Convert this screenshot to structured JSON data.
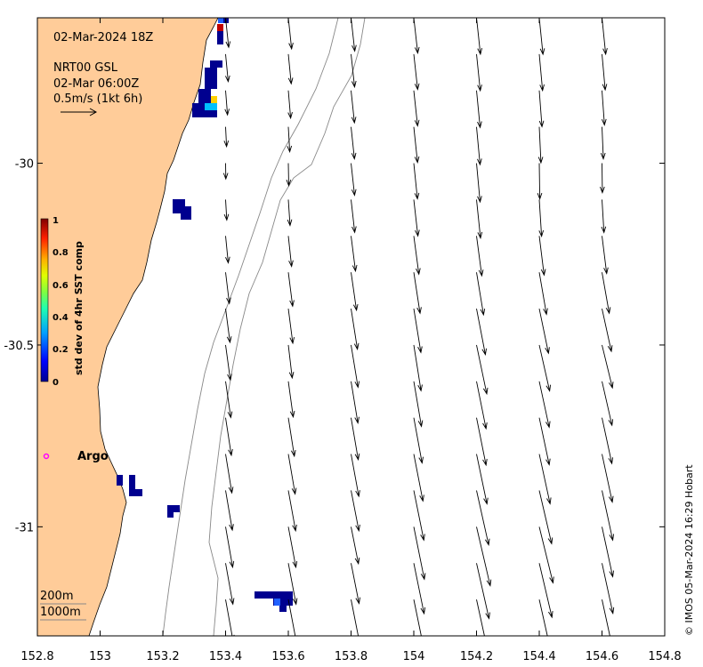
{
  "header": {
    "date": "02-Mar-2024 18Z",
    "product": "NRT00 GSL",
    "valid_time": "02-Mar 06:00Z",
    "scale_label": "0.5m/s (1kt 6h)"
  },
  "axes": {
    "x_ticks": [
      "152.8",
      "153",
      "153.2",
      "153.4",
      "153.6",
      "153.8",
      "154",
      "154.2",
      "154.4",
      "154.6",
      "154.8"
    ],
    "y_ticks": [
      "-30",
      "-30.5",
      "-31"
    ],
    "xlim": [
      152.8,
      154.8
    ],
    "ylim": [
      -31.3,
      -29.6
    ]
  },
  "colorbar": {
    "label": "std dev of 4hr SST comp",
    "ticks": [
      "1",
      "0.8",
      "0.6",
      "0.4",
      "0.2",
      "0"
    ],
    "colors": [
      "#00008f",
      "#0050ff",
      "#00c0ff",
      "#40ff80",
      "#c0ff00",
      "#ffd000",
      "#ff6000",
      "#c00000",
      "#800000"
    ]
  },
  "argo": {
    "label": "Argo",
    "color": "#ff00ff"
  },
  "isobaths": {
    "label_200": "200m",
    "label_1000": "1000m"
  },
  "credit": "© IMOS 05-Mar-2024 16:29 Hobart",
  "colors": {
    "land": "#ffcc99",
    "contour": "#888888",
    "sst_low": "#00008f"
  },
  "current_field": {
    "type": "vector",
    "units": "m/s",
    "note_reference_speed": 0.5,
    "vectors": [
      {
        "lon": 153.4,
        "lat": -30.0,
        "u": 0.0,
        "v": -0.2
      },
      {
        "lon": 153.6,
        "lat": -30.0,
        "u": 0.0,
        "v": -0.3
      },
      {
        "lon": 153.8,
        "lat": -30.0,
        "u": 0.05,
        "v": -0.45
      },
      {
        "lon": 154.0,
        "lat": -30.0,
        "u": 0.05,
        "v": -0.5
      },
      {
        "lon": 154.2,
        "lat": -30.0,
        "u": 0.05,
        "v": -0.55
      },
      {
        "lon": 154.4,
        "lat": -30.0,
        "u": 0.0,
        "v": -0.5
      },
      {
        "lon": 154.6,
        "lat": -30.0,
        "u": 0.0,
        "v": -0.4
      },
      {
        "lon": 153.6,
        "lat": -30.5,
        "u": 0.05,
        "v": -0.45
      },
      {
        "lon": 153.8,
        "lat": -30.5,
        "u": 0.1,
        "v": -0.6
      },
      {
        "lon": 154.0,
        "lat": -30.5,
        "u": 0.1,
        "v": -0.65
      },
      {
        "lon": 154.2,
        "lat": -30.5,
        "u": 0.15,
        "v": -0.7
      },
      {
        "lon": 154.4,
        "lat": -30.5,
        "u": 0.15,
        "v": -0.65
      },
      {
        "lon": 154.6,
        "lat": -30.5,
        "u": 0.15,
        "v": -0.6
      },
      {
        "lon": 153.8,
        "lat": -31.0,
        "u": 0.1,
        "v": -0.5
      },
      {
        "lon": 154.0,
        "lat": -31.0,
        "u": 0.15,
        "v": -0.75
      },
      {
        "lon": 154.2,
        "lat": -31.0,
        "u": 0.2,
        "v": -0.85
      },
      {
        "lon": 154.4,
        "lat": -31.0,
        "u": 0.2,
        "v": -0.8
      },
      {
        "lon": 154.6,
        "lat": -31.0,
        "u": 0.15,
        "v": -0.7
      }
    ]
  }
}
